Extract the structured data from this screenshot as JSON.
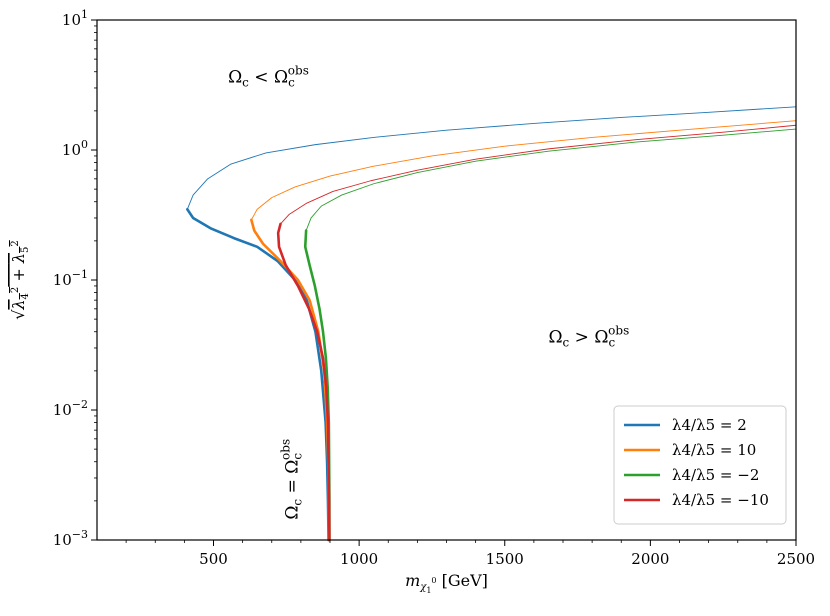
{
  "chart_data": {
    "type": "line",
    "title": "",
    "xlabel": "m_{χ1^0} [GeV]",
    "ylabel": "√(λ4² + λ5²)",
    "xlim": [
      100,
      2500
    ],
    "ylim": [
      0.001,
      10
    ],
    "yscale": "log",
    "grid": false,
    "legend_position": "bottom-right",
    "x_ticks": [
      {
        "value": 500,
        "label": "500"
      },
      {
        "value": 1000,
        "label": "1000"
      },
      {
        "value": 1500,
        "label": "1500"
      },
      {
        "value": 2000,
        "label": "2000"
      },
      {
        "value": 2500,
        "label": "2500"
      }
    ],
    "y_ticks": [
      {
        "value": 0.001,
        "base": "10",
        "exp": "−3"
      },
      {
        "value": 0.01,
        "base": "10",
        "exp": "−2"
      },
      {
        "value": 0.1,
        "base": "10",
        "exp": "−1"
      },
      {
        "value": 1,
        "base": "10",
        "exp": "0"
      },
      {
        "value": 10,
        "base": "10",
        "exp": "1"
      }
    ],
    "annotations": [
      {
        "id": "under",
        "text": "Ωc < Ωc^obs",
        "x": 550,
        "y": 3.3
      },
      {
        "id": "over",
        "text": "Ωc > Ωc^obs",
        "x": 1650,
        "y": 0.033
      },
      {
        "id": "equal",
        "text": "Ωc = Ωc^obs",
        "x": 840,
        "y": 0.0035
      }
    ],
    "series": [
      {
        "name": "λ4/λ5 = 2",
        "color": "#1f77b4",
        "thick_x": [
          895,
          893,
          890,
          885,
          870,
          850,
          820,
          780,
          720,
          650,
          570,
          490,
          430,
          410
        ],
        "thick_y": [
          0.001,
          0.002,
          0.004,
          0.008,
          0.02,
          0.04,
          0.07,
          0.1,
          0.14,
          0.18,
          0.21,
          0.25,
          0.3,
          0.35
        ],
        "thin_x": [
          410,
          430,
          480,
          560,
          680,
          850,
          1050,
          1300,
          1600,
          1900,
          2200,
          2500
        ],
        "thin_y": [
          0.35,
          0.45,
          0.6,
          0.78,
          0.95,
          1.1,
          1.25,
          1.42,
          1.6,
          1.78,
          1.95,
          2.15
        ]
      },
      {
        "name": "λ4/λ5 = 10",
        "color": "#ff7f0e",
        "thick_x": [
          897,
          896,
          894,
          890,
          880,
          860,
          830,
          790,
          730,
          670,
          640,
          630
        ],
        "thick_y": [
          0.001,
          0.002,
          0.004,
          0.008,
          0.02,
          0.04,
          0.07,
          0.1,
          0.14,
          0.19,
          0.24,
          0.29
        ],
        "thin_x": [
          630,
          650,
          700,
          780,
          900,
          1050,
          1250,
          1500,
          1800,
          2100,
          2500
        ],
        "thin_y": [
          0.29,
          0.35,
          0.43,
          0.52,
          0.63,
          0.75,
          0.9,
          1.07,
          1.25,
          1.42,
          1.68
        ]
      },
      {
        "name": "λ4/λ5 = −2",
        "color": "#2ca02c",
        "thick_x": [
          898,
          898,
          897,
          896,
          892,
          886,
          876,
          864,
          848,
          830,
          815,
          818
        ],
        "thick_y": [
          0.001,
          0.002,
          0.004,
          0.008,
          0.015,
          0.025,
          0.04,
          0.06,
          0.09,
          0.13,
          0.18,
          0.24
        ],
        "thin_x": [
          818,
          835,
          870,
          940,
          1050,
          1200,
          1400,
          1650,
          1950,
          2250,
          2500
        ],
        "thin_y": [
          0.24,
          0.3,
          0.37,
          0.45,
          0.55,
          0.67,
          0.82,
          0.98,
          1.15,
          1.3,
          1.45
        ]
      },
      {
        "name": "λ4/λ5 = −10",
        "color": "#d62728",
        "thick_x": [
          898,
          897,
          895,
          893,
          887,
          876,
          856,
          828,
          790,
          748,
          725,
          722,
          730
        ],
        "thick_y": [
          0.001,
          0.002,
          0.004,
          0.008,
          0.015,
          0.025,
          0.04,
          0.06,
          0.09,
          0.13,
          0.18,
          0.23,
          0.27
        ],
        "thin_x": [
          730,
          760,
          820,
          910,
          1040,
          1200,
          1400,
          1650,
          1950,
          2250,
          2500
        ],
        "thin_y": [
          0.27,
          0.32,
          0.39,
          0.48,
          0.58,
          0.7,
          0.85,
          1.02,
          1.2,
          1.37,
          1.55
        ]
      }
    ]
  }
}
